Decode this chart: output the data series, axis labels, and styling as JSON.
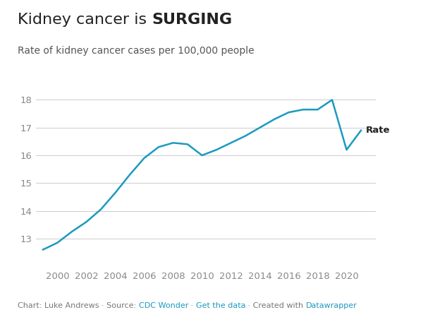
{
  "title_part1": "Kidney cancer is ",
  "title_bold": "SURGING",
  "subtitle": "Rate of kidney cancer cases per 100,000 people",
  "years": [
    1999,
    2000,
    2001,
    2002,
    2003,
    2004,
    2005,
    2006,
    2007,
    2008,
    2009,
    2010,
    2011,
    2012,
    2013,
    2014,
    2015,
    2016,
    2017,
    2018,
    2019,
    2020,
    2021
  ],
  "rates": [
    12.6,
    12.85,
    13.25,
    13.6,
    14.05,
    14.65,
    15.3,
    15.9,
    16.3,
    16.45,
    16.4,
    16.0,
    16.2,
    16.45,
    16.7,
    17.0,
    17.3,
    17.55,
    17.65,
    17.65,
    18.0,
    16.2,
    16.9
  ],
  "line_color": "#1a9abf",
  "background_color": "#ffffff",
  "ylim": [
    12.0,
    18.4
  ],
  "yticks": [
    13,
    14,
    15,
    16,
    17,
    18
  ],
  "xticks": [
    2000,
    2002,
    2004,
    2006,
    2008,
    2010,
    2012,
    2014,
    2016,
    2018,
    2020
  ],
  "xlim": [
    1998.5,
    2022.0
  ],
  "footer_plain": "Chart: Luke Andrews · Source: ",
  "footer_source": "CDC Wonder",
  "footer_mid": " · ",
  "footer_getdata": "Get the data",
  "footer_end": " · Created with ",
  "footer_datawrapper": "Datawrapper",
  "footer_color": "#777777",
  "footer_link_color": "#1a9abf",
  "label_rate": "Rate",
  "line_width": 1.8,
  "title_fontsize": 16,
  "subtitle_fontsize": 10,
  "tick_fontsize": 9.5,
  "footer_fontsize": 8,
  "label_fontsize": 9.5,
  "grid_color": "#cccccc",
  "tick_color": "#888888",
  "text_color": "#222222"
}
